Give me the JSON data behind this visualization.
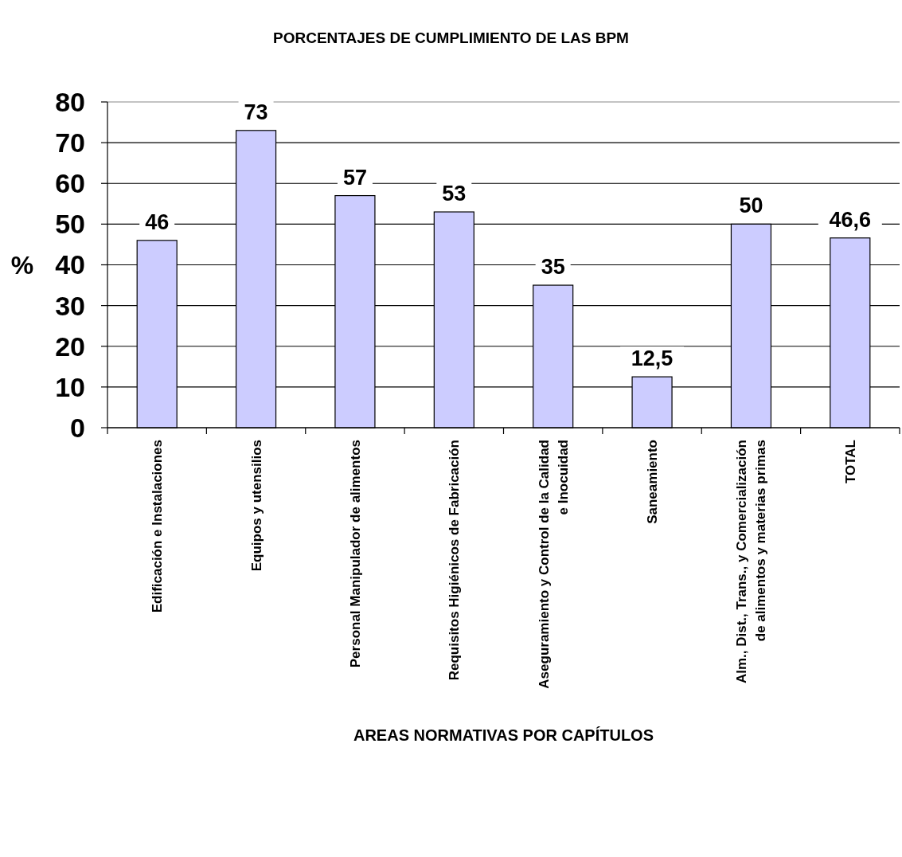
{
  "chart_data": {
    "type": "bar",
    "title": "PORCENTAJES DE CUMPLIMIENTO DE LAS BPM",
    "xlabel": "AREAS NORMATIVAS POR CAPÍTULOS",
    "ylabel": "%",
    "categories": [
      "Edificación e Instalaciones",
      "Equipos y utensilios",
      "Personal Manipulador de alimentos",
      "Requisitos Higiénicos de Fabricación",
      "Aseguramiento y Control de la Calidad e Inocuidad",
      "Saneamiento",
      "Alm., Dist., Trans., y Comercialización de alimentos y materias primas",
      "TOTAL"
    ],
    "values": [
      46,
      73,
      57,
      53,
      35,
      12.5,
      50,
      46.6
    ],
    "value_labels": [
      "46",
      "73",
      "57",
      "53",
      "35",
      "12,5",
      "50",
      "46,6"
    ],
    "color": "#ccccff",
    "ylim": [
      0,
      80
    ],
    "yticks": [
      0,
      10,
      20,
      30,
      40,
      50,
      60,
      70,
      80
    ],
    "grid": "y"
  }
}
